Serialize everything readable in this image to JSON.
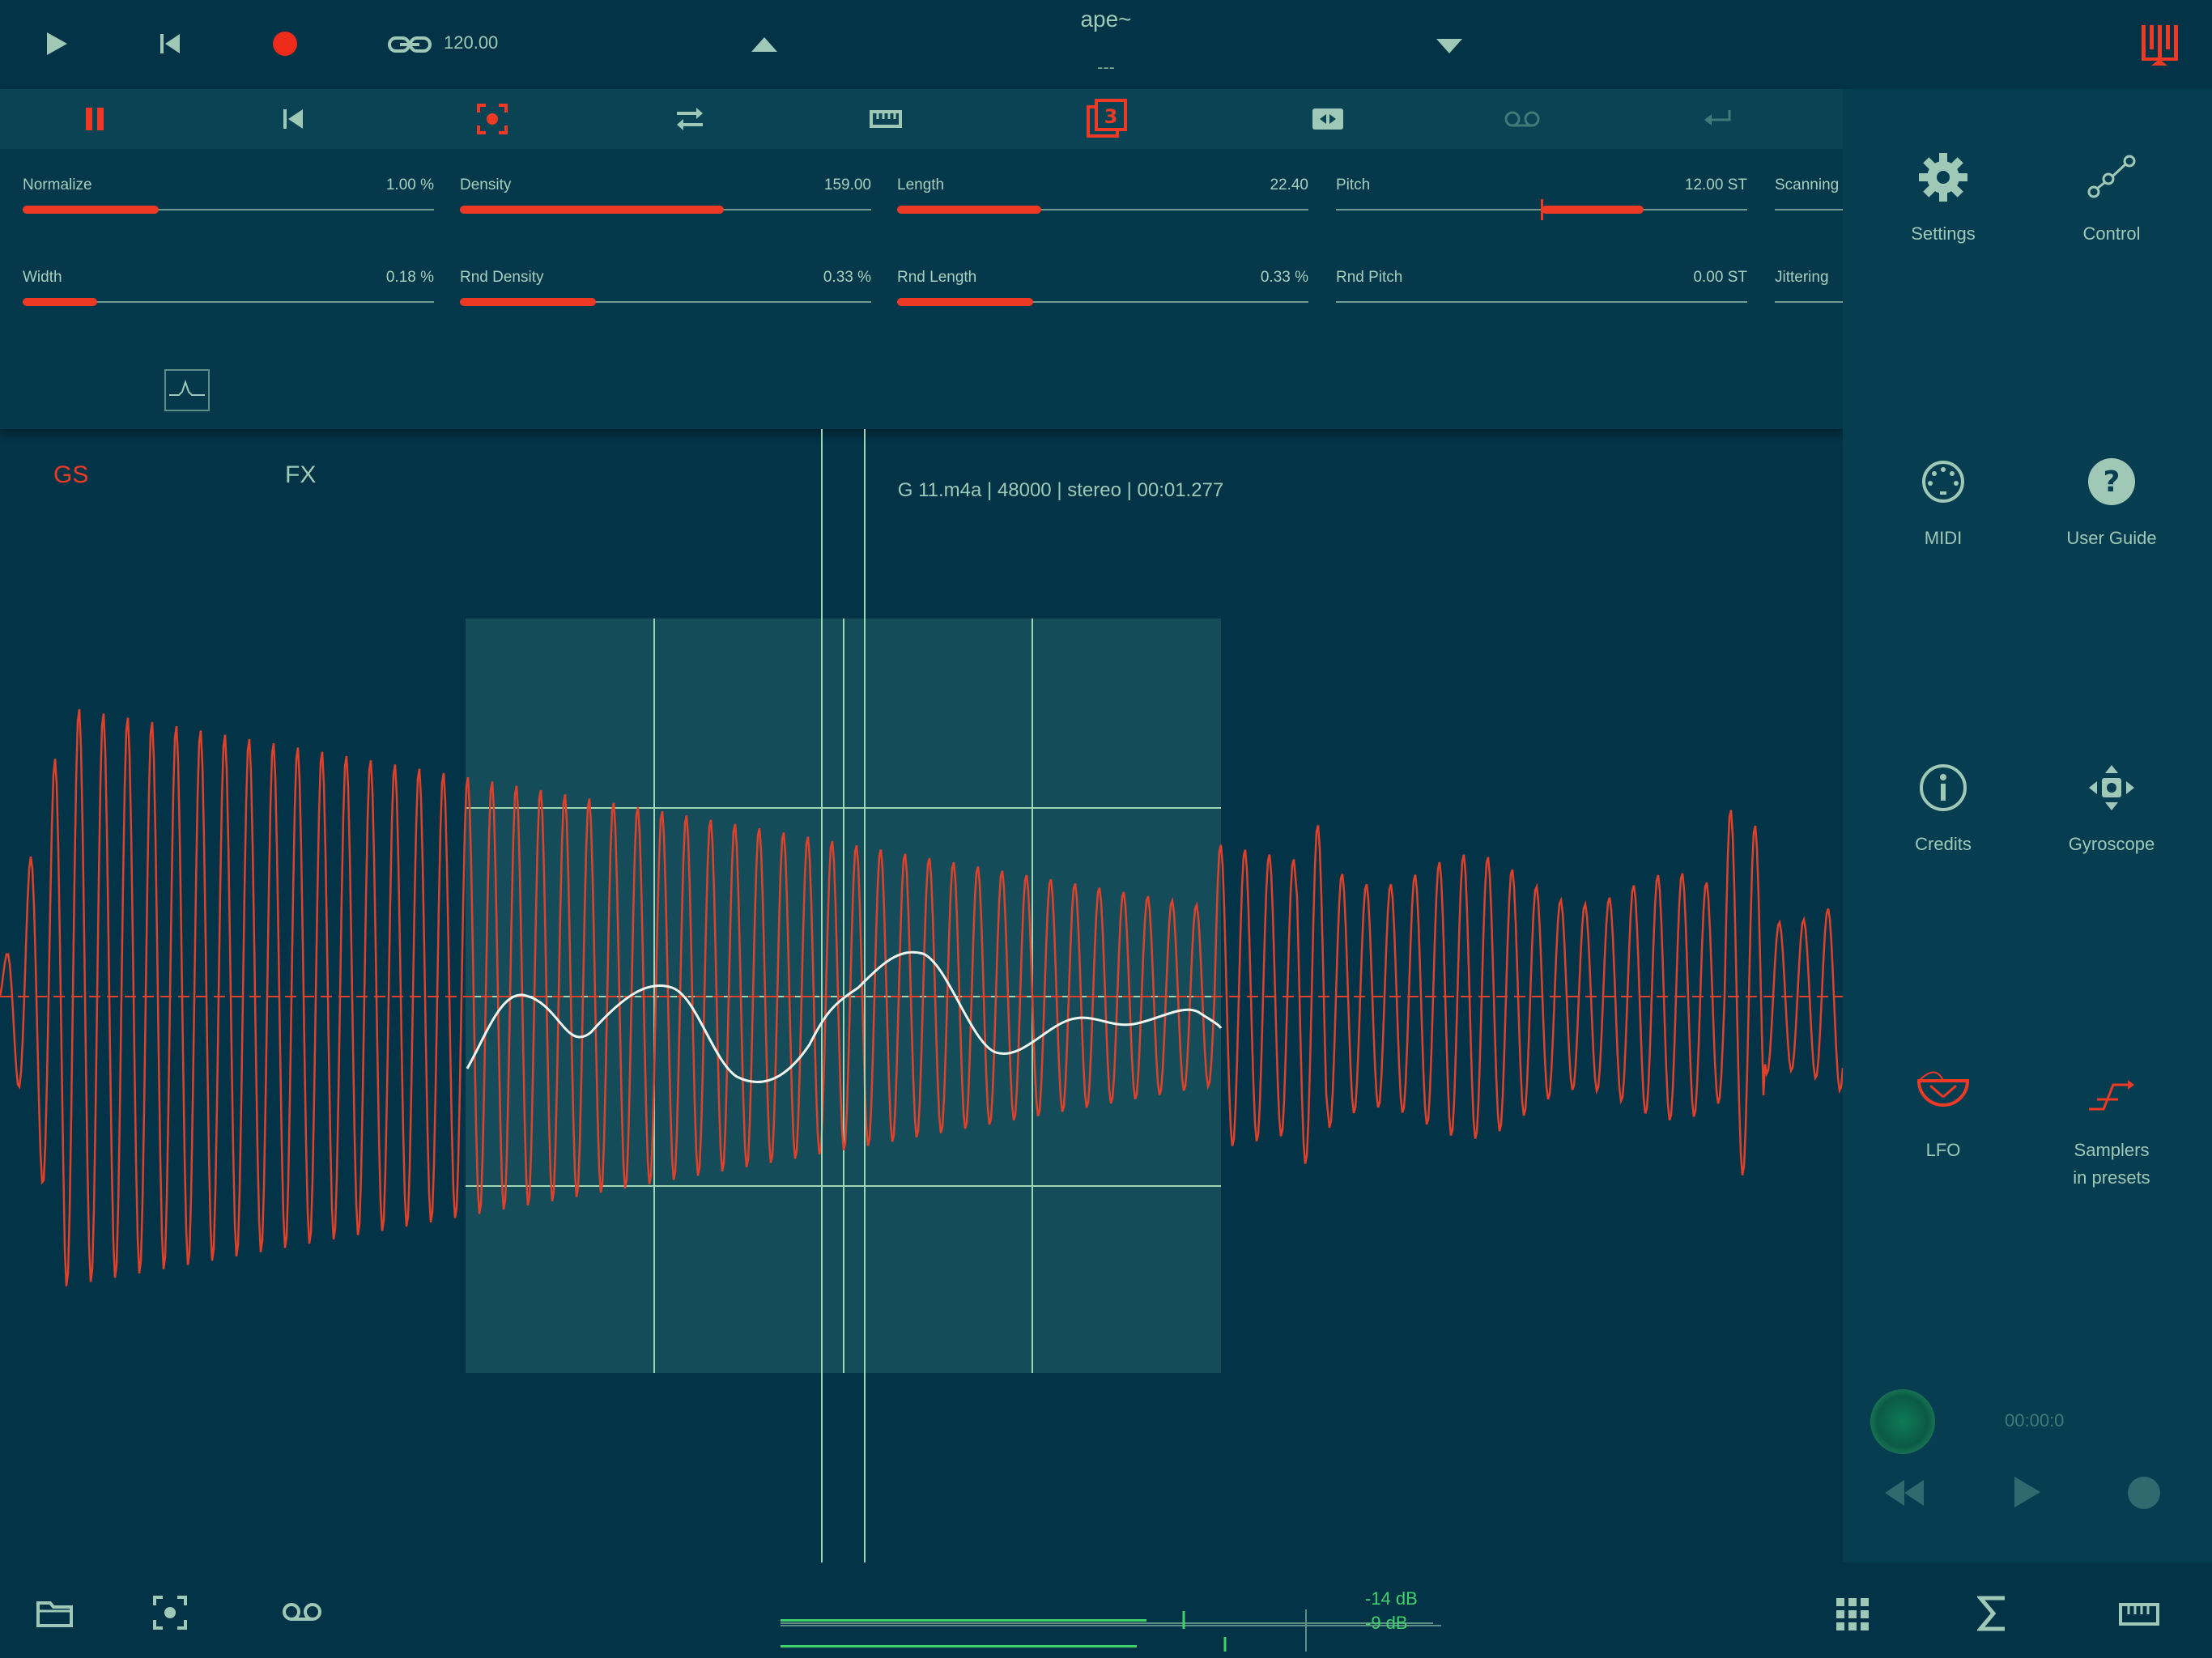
{
  "topbar": {
    "tempo": "120.00",
    "preset_title": "ape~",
    "preset_sub": "---"
  },
  "colors": {
    "accent": "#ee3a24",
    "bg": "#033346",
    "text": "#9fc9b6",
    "meter": "#3fd26a"
  },
  "params": [
    {
      "label": "Normalize",
      "value": "1.00 %",
      "level": 0.33
    },
    {
      "label": "Density",
      "value": "159.00",
      "level": 0.64
    },
    {
      "label": "Length",
      "value": "22.40",
      "level": 0.35
    },
    {
      "label": "Pitch",
      "value": "12.00 ST",
      "level": 0.25
    },
    {
      "label": "Scanning",
      "value": "",
      "level": 0.0
    },
    {
      "label": "Width",
      "value": "0.18 %",
      "level": 0.18
    },
    {
      "label": "Rnd Density",
      "value": "0.33 %",
      "level": 0.33
    },
    {
      "label": "Rnd Length",
      "value": "0.33 %",
      "level": 0.33
    },
    {
      "label": "Rnd Pitch",
      "value": "0.00 ST",
      "level": 0.0
    },
    {
      "label": "Jittering",
      "value": "",
      "level": 0.0
    }
  ],
  "tabs": {
    "gs": "GS",
    "fx": "FX"
  },
  "file_info": "G 11.m4a | 48000 | stereo  | 00:01.277",
  "sidebar": {
    "items": [
      {
        "label": "Settings",
        "icon": "gear-icon"
      },
      {
        "label": "Control",
        "icon": "nodes-icon"
      },
      {
        "label": "MIDI",
        "icon": "midi-icon"
      },
      {
        "label": "User Guide",
        "icon": "help-icon"
      },
      {
        "label": "Credits",
        "icon": "info-icon"
      },
      {
        "label": "Gyroscope",
        "icon": "gyroscope-icon"
      },
      {
        "label": "LFO",
        "icon": "lfo-icon"
      },
      {
        "label": "Samplers\nin presets",
        "icon": "samplers-icon"
      }
    ],
    "recorder_time": "00:00:0"
  },
  "meter": {
    "top_db": "-14 dB",
    "bottom_db": "-9 dB"
  }
}
